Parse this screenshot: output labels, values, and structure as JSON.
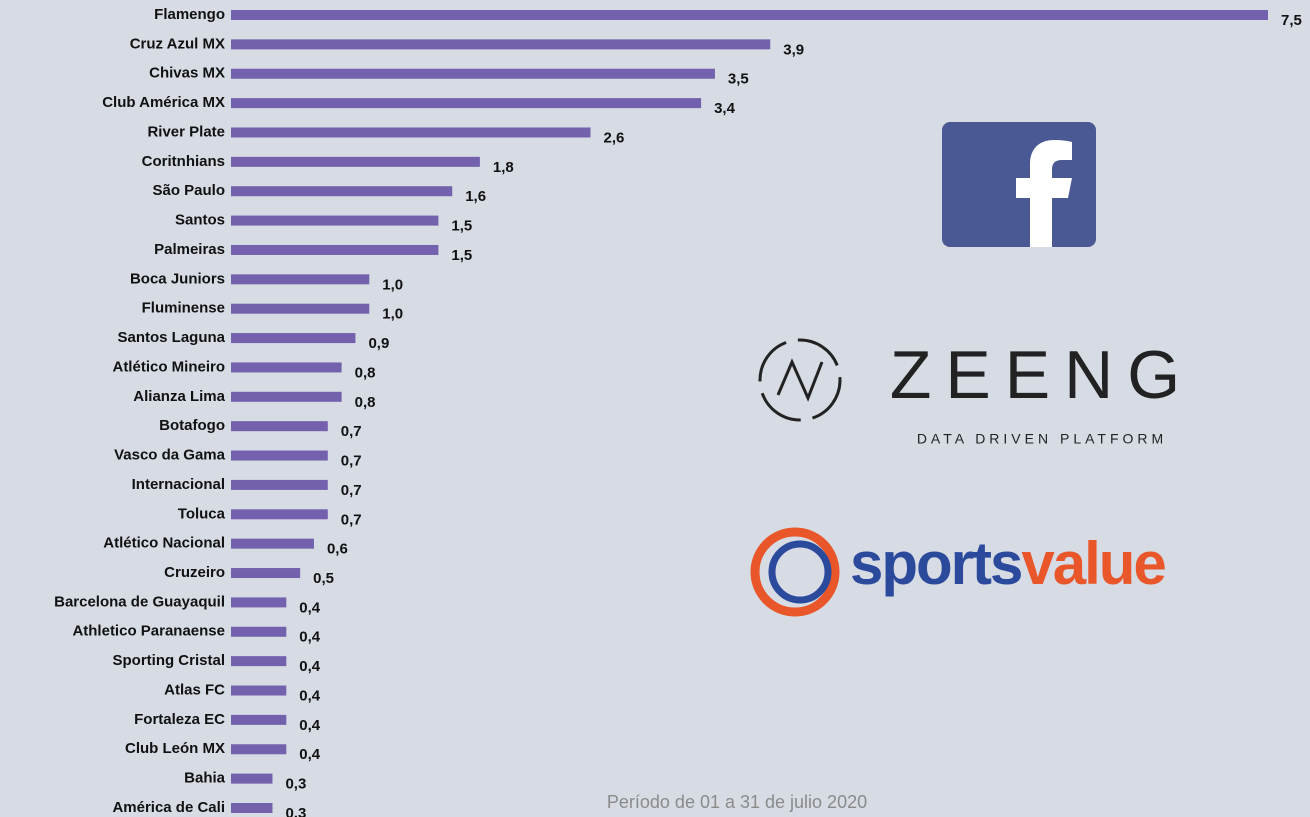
{
  "chart_data": {
    "type": "hbar",
    "categories": [
      "Flamengo",
      "Cruz Azul MX",
      "Chivas MX",
      "Club América MX",
      "River Plate",
      "Coritnhians",
      "São Paulo",
      "Santos",
      "Palmeiras",
      "Boca Juniors",
      "Fluminense",
      "Santos Laguna",
      "Atlético Mineiro",
      "Alianza Lima",
      "Botafogo",
      "Vasco da Gama",
      "Internacional",
      "Toluca",
      "Atlético Nacional",
      "Cruzeiro",
      "Barcelona de Guayaquil",
      "Athletico Paranaense",
      "Sporting Cristal",
      "Atlas FC",
      "Fortaleza EC",
      "Club León MX",
      "Bahia",
      "América de Cali"
    ],
    "values": [
      7.5,
      3.9,
      3.5,
      3.4,
      2.6,
      1.8,
      1.6,
      1.5,
      1.5,
      1.0,
      1.0,
      0.9,
      0.8,
      0.8,
      0.7,
      0.7,
      0.7,
      0.7,
      0.6,
      0.5,
      0.4,
      0.4,
      0.4,
      0.4,
      0.4,
      0.4,
      0.3,
      0.3
    ],
    "value_labels": [
      "7,5",
      "3,9",
      "3,5",
      "3,4",
      "2,6",
      "1,8",
      "1,6",
      "1,5",
      "1,5",
      "1,0",
      "1,0",
      "0,9",
      "0,8",
      "0,8",
      "0,7",
      "0,7",
      "0,7",
      "0,7",
      "0,6",
      "0,5",
      "0,4",
      "0,4",
      "0,4",
      "0,4",
      "0,4",
      "0,4",
      "0,3",
      "0,3"
    ],
    "color": "#7361ad",
    "footnote": "Período de 01 a 31 de julio 2020"
  },
  "logos": {
    "zeeng": "ZEENG",
    "zeeng_tagline": "DATA DRIVEN PLATFORM",
    "sportsvalue_a": "sports",
    "sportsvalue_b": "value"
  }
}
